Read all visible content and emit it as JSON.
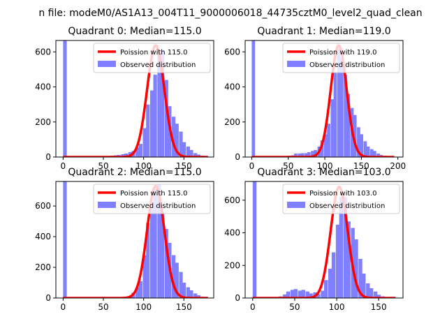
{
  "suptitle": "n file: modeM0/AS1A13_004T11_9000006018_44735cztM0_level2_quad_clean",
  "colors": {
    "observed": "#7f7fff",
    "poisson": "#ff0000",
    "axis": "#000000"
  },
  "chart_data": [
    {
      "type": "bar",
      "title": "Quadrant 0: Median=115.0",
      "xlim": [
        -9,
        187
      ],
      "ylim": [
        0,
        665
      ],
      "xticks": [
        0,
        50,
        100,
        150
      ],
      "yticks": [
        0,
        200,
        400,
        600
      ],
      "legend": {
        "placement": "top-right",
        "entries": [
          "Poission with 115.0",
          "Observed distribution"
        ]
      },
      "poisson": {
        "mean": 115.0,
        "peak": 637,
        "x_range": [
          0,
          180
        ]
      },
      "histogram": {
        "bin_width": 4.5,
        "bins": [
          [
            0,
            665
          ],
          [
            58,
            8
          ],
          [
            63,
            10
          ],
          [
            67,
            12
          ],
          [
            72,
            16
          ],
          [
            76,
            20
          ],
          [
            81,
            28
          ],
          [
            85,
            35
          ],
          [
            90,
            55
          ],
          [
            94,
            75
          ],
          [
            99,
            165
          ],
          [
            103,
            300
          ],
          [
            108,
            380
          ],
          [
            112,
            470
          ],
          [
            117,
            590
          ],
          [
            121,
            610
          ],
          [
            126,
            440
          ],
          [
            130,
            290
          ],
          [
            135,
            230
          ],
          [
            139,
            190
          ],
          [
            144,
            145
          ],
          [
            148,
            85
          ],
          [
            153,
            60
          ],
          [
            157,
            40
          ],
          [
            162,
            22
          ],
          [
            166,
            14
          ],
          [
            171,
            8
          ]
        ]
      }
    },
    {
      "type": "bar",
      "title": "Quadrant 1: Median=119.0",
      "xlim": [
        -9,
        207
      ],
      "ylim": [
        0,
        665
      ],
      "xticks": [
        0,
        50,
        100,
        150,
        200
      ],
      "yticks": [
        0,
        200,
        400,
        600
      ],
      "legend": {
        "placement": "top-right",
        "entries": [
          "Poission with 119.0",
          "Observed distribution"
        ]
      },
      "poisson": {
        "mean": 119.0,
        "peak": 637,
        "x_range": [
          0,
          195
        ]
      },
      "histogram": {
        "bin_width": 4.5,
        "bins": [
          [
            0,
            665
          ],
          [
            40,
            5
          ],
          [
            45,
            6
          ],
          [
            49,
            8
          ],
          [
            54,
            10
          ],
          [
            58,
            20
          ],
          [
            63,
            20
          ],
          [
            67,
            22
          ],
          [
            72,
            22
          ],
          [
            76,
            28
          ],
          [
            81,
            35
          ],
          [
            85,
            40
          ],
          [
            90,
            60
          ],
          [
            94,
            95
          ],
          [
            99,
            130
          ],
          [
            103,
            190
          ],
          [
            108,
            330
          ],
          [
            112,
            480
          ],
          [
            117,
            630
          ],
          [
            121,
            560
          ],
          [
            126,
            470
          ],
          [
            130,
            360
          ],
          [
            135,
            280
          ],
          [
            139,
            240
          ],
          [
            144,
            170
          ],
          [
            148,
            130
          ],
          [
            153,
            90
          ],
          [
            157,
            60
          ],
          [
            162,
            45
          ],
          [
            166,
            35
          ],
          [
            171,
            20
          ],
          [
            175,
            12
          ],
          [
            180,
            8
          ]
        ]
      }
    },
    {
      "type": "bar",
      "title": "Quadrant 2: Median=115.0",
      "xlim": [
        -9,
        187
      ],
      "ylim": [
        0,
        760
      ],
      "xticks": [
        0,
        50,
        100,
        150
      ],
      "yticks": [
        0,
        200,
        400,
        600
      ],
      "legend": {
        "placement": "top-right",
        "entries": [
          "Poission with 115.0",
          "Observed distribution"
        ]
      },
      "poisson": {
        "mean": 115.0,
        "peak": 730,
        "x_range": [
          0,
          180
        ]
      },
      "histogram": {
        "bin_width": 4.5,
        "bins": [
          [
            0,
            760
          ],
          [
            76,
            5
          ],
          [
            81,
            10
          ],
          [
            85,
            35
          ],
          [
            90,
            70
          ],
          [
            94,
            110
          ],
          [
            99,
            280
          ],
          [
            103,
            490
          ],
          [
            108,
            580
          ],
          [
            112,
            710
          ],
          [
            117,
            740
          ],
          [
            121,
            560
          ],
          [
            126,
            450
          ],
          [
            130,
            360
          ],
          [
            135,
            280
          ],
          [
            139,
            230
          ],
          [
            144,
            170
          ],
          [
            148,
            100
          ],
          [
            153,
            70
          ],
          [
            157,
            50
          ],
          [
            162,
            30
          ],
          [
            166,
            18
          ],
          [
            171,
            8
          ]
        ]
      }
    },
    {
      "type": "bar",
      "title": "Quadrant 3: Median=103.0",
      "xlim": [
        -9,
        179
      ],
      "ylim": [
        0,
        715
      ],
      "xticks": [
        0,
        50,
        100,
        150
      ],
      "yticks": [
        0,
        200,
        400,
        600
      ],
      "legend": {
        "placement": "top-right",
        "entries": [
          "Poission with 103.0",
          "Observed distribution"
        ]
      },
      "poisson": {
        "mean": 103.0,
        "peak": 682,
        "x_range": [
          0,
          170
        ]
      },
      "histogram": {
        "bin_width": 4.5,
        "bins": [
          [
            0,
            715
          ],
          [
            27,
            5
          ],
          [
            31,
            10
          ],
          [
            36,
            22
          ],
          [
            40,
            40
          ],
          [
            45,
            50
          ],
          [
            49,
            55
          ],
          [
            54,
            45
          ],
          [
            58,
            50
          ],
          [
            63,
            40
          ],
          [
            67,
            28
          ],
          [
            72,
            35
          ],
          [
            76,
            25
          ],
          [
            81,
            45
          ],
          [
            85,
            110
          ],
          [
            90,
            180
          ],
          [
            94,
            280
          ],
          [
            99,
            450
          ],
          [
            103,
            620
          ],
          [
            108,
            620
          ],
          [
            112,
            470
          ],
          [
            117,
            430
          ],
          [
            121,
            360
          ],
          [
            126,
            240
          ],
          [
            130,
            150
          ],
          [
            135,
            90
          ],
          [
            139,
            60
          ],
          [
            144,
            40
          ],
          [
            148,
            20
          ],
          [
            153,
            10
          ]
        ]
      }
    }
  ]
}
